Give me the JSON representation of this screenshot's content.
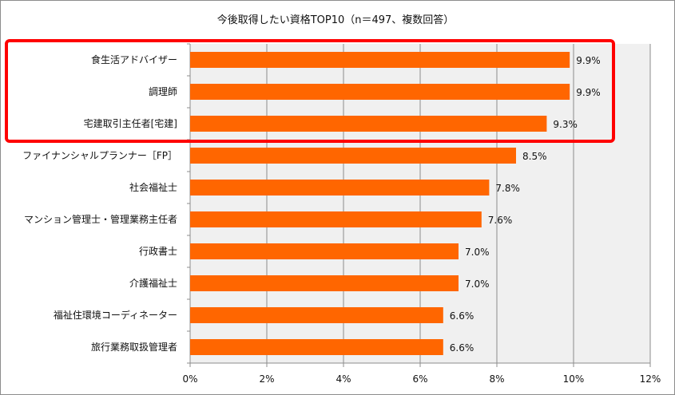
{
  "chart_data": {
    "type": "bar",
    "orientation": "horizontal",
    "title": "今後取得したい資格TOP10（n＝497、複数回答）",
    "categories": [
      "食生活アドバイザー",
      "調理師",
      "宅建取引主任者[宅建]",
      "ファイナンシャルプランナー［FP］",
      "社会福祉士",
      "マンション管理士・管理業務主任者",
      "行政書士",
      "介護福祉士",
      "福祉住環境コーディネーター",
      "旅行業務取扱管理者"
    ],
    "values": [
      9.9,
      9.9,
      9.3,
      8.5,
      7.8,
      7.6,
      7.0,
      7.0,
      6.6,
      6.6
    ],
    "data_labels": [
      "9.9%",
      "9.9%",
      "9.3%",
      "8.5%",
      "7.8%",
      "7.6%",
      "7.0%",
      "7.0%",
      "6.6%",
      "6.6%"
    ],
    "xlim": [
      0,
      12
    ],
    "xticks": [
      0,
      2,
      4,
      6,
      8,
      10,
      12
    ],
    "xtick_labels": [
      "0%",
      "2%",
      "4%",
      "6%",
      "8%",
      "10%",
      "12%"
    ],
    "xlabel": "",
    "ylabel": "",
    "grid": true,
    "highlighted_categories": [
      0,
      1,
      2
    ],
    "colors": {
      "bar": "#ff6600",
      "plot_bg": "#f0f0f0",
      "grid": "#8c8c8c",
      "highlight": "#ff0000"
    }
  }
}
